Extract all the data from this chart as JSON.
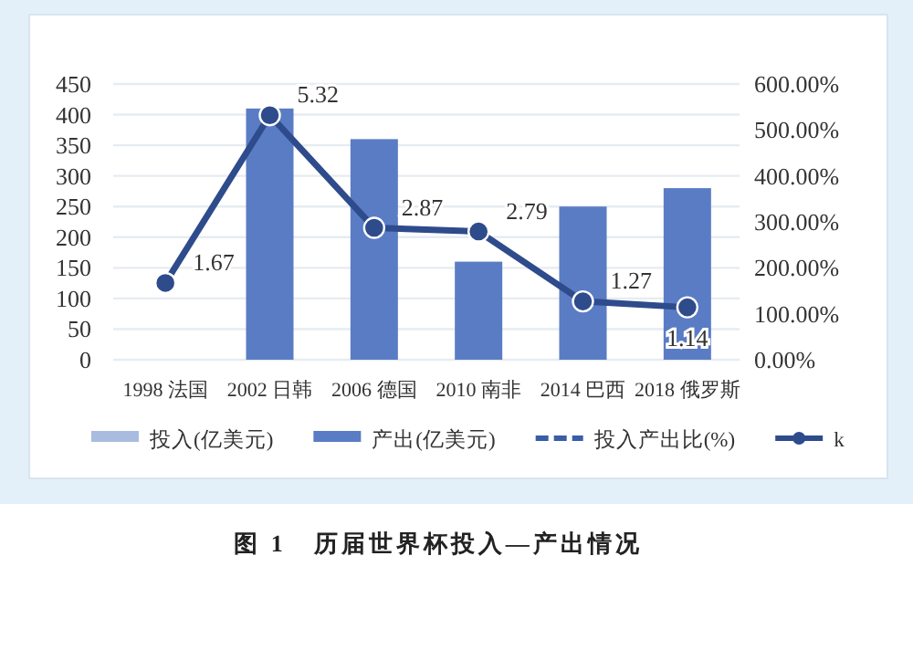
{
  "chart_data": {
    "type": "bar",
    "title": "图 1　历届世界杯投入—产出情况",
    "categories": [
      "1998 法国",
      "2002 日韩",
      "2006 德国",
      "2010 南非",
      "2014 巴西",
      "2018 俄罗斯"
    ],
    "series": [
      {
        "name": "投入(亿美元)",
        "color": "#a9bce0",
        "values": [
          null,
          null,
          null,
          null,
          null,
          null
        ]
      },
      {
        "name": "产出(亿美元)",
        "color": "#5a7cc4",
        "values": [
          null,
          410,
          360,
          160,
          250,
          280
        ]
      },
      {
        "name": "投入产出比(%)",
        "type": "line",
        "axis": "y2",
        "color": "#3a5da6",
        "line_style": "dashed",
        "marker": "none",
        "values": [
          null,
          null,
          null,
          null,
          null,
          null
        ]
      },
      {
        "name": "k",
        "type": "line",
        "axis": "y2",
        "color": "#2e4b8c",
        "line_style": "solid",
        "marker": "circle",
        "values": [
          1.67,
          5.32,
          2.87,
          2.79,
          1.27,
          1.14
        ],
        "value_labels": [
          "1.67",
          "5.32",
          "2.87",
          "2.79",
          "1.27",
          "1.14"
        ]
      }
    ],
    "ylim": [
      0,
      450
    ],
    "yticks": [
      0,
      50,
      100,
      150,
      200,
      250,
      300,
      350,
      400,
      450
    ],
    "y2lim": [
      0,
      6
    ],
    "y2ticks": [
      {
        "value": 0,
        "label": "0.00%"
      },
      {
        "value": 1,
        "label": "100.00%"
      },
      {
        "value": 2,
        "label": "200.00%"
      },
      {
        "value": 3,
        "label": "300.00%"
      },
      {
        "value": 4,
        "label": "400.00%"
      },
      {
        "value": 5,
        "label": "500.00%"
      },
      {
        "value": 6,
        "label": "600.00%"
      }
    ],
    "grid": "y",
    "legend": "bottom"
  }
}
